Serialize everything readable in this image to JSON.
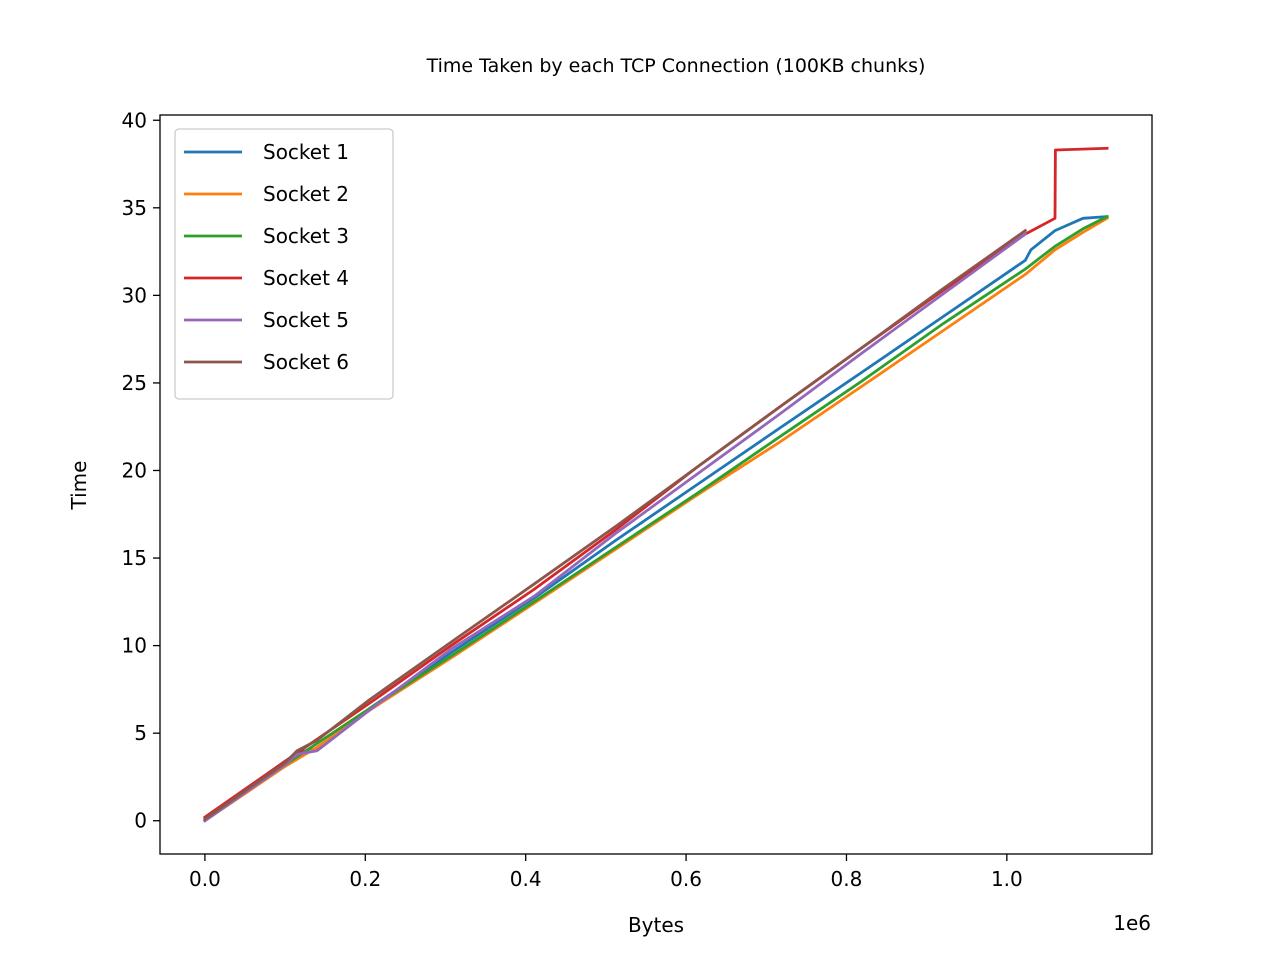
{
  "chart_data": {
    "type": "line",
    "title": "Time Taken by each TCP Connection (100KB chunks)",
    "xlabel": "Bytes",
    "ylabel": "Time",
    "x_offset_label": "1e6",
    "xlim": [
      -56000,
      1181000
    ],
    "ylim": [
      -1.9,
      40.3
    ],
    "x_ticks": [
      0,
      200000,
      400000,
      600000,
      800000,
      1000000
    ],
    "x_tick_labels": [
      "0.0",
      "0.2",
      "0.4",
      "0.6",
      "0.8",
      "1.0"
    ],
    "y_ticks": [
      0,
      5,
      10,
      15,
      20,
      25,
      30,
      35,
      40
    ],
    "y_tick_labels": [
      "0",
      "5",
      "10",
      "15",
      "20",
      "25",
      "30",
      "35",
      "40"
    ],
    "grid": false,
    "legend_position": "upper-left",
    "series": [
      {
        "name": "Socket 1",
        "color": "#1f77b4",
        "x": [
          0,
          100000,
          115000,
          140000,
          205000,
          307000,
          410000,
          512000,
          614000,
          716000,
          819000,
          921000,
          1023000,
          1030000,
          1060000,
          1095000,
          1125000
        ],
        "y": [
          0,
          3.2,
          3.9,
          4.1,
          6.4,
          9.6,
          12.7,
          16.0,
          19.2,
          22.4,
          25.6,
          28.8,
          32.0,
          32.6,
          33.7,
          34.4,
          34.5
        ]
      },
      {
        "name": "Socket 2",
        "color": "#ff7f0e",
        "x": [
          0,
          100000,
          140000,
          205000,
          307000,
          410000,
          512000,
          614000,
          716000,
          819000,
          921000,
          1023000,
          1060000,
          1095000,
          1125000
        ],
        "y": [
          0,
          3.1,
          4.2,
          6.3,
          9.3,
          12.4,
          15.5,
          18.6,
          21.6,
          24.8,
          28.0,
          31.2,
          32.6,
          33.6,
          34.4
        ]
      },
      {
        "name": "Socket 3",
        "color": "#2ca02c",
        "x": [
          0,
          100000,
          205000,
          307000,
          410000,
          512000,
          614000,
          716000,
          819000,
          921000,
          1023000,
          1060000,
          1095000,
          1125000
        ],
        "y": [
          0,
          3.2,
          6.4,
          9.4,
          12.5,
          15.6,
          18.7,
          21.9,
          25.1,
          28.4,
          31.5,
          32.8,
          33.8,
          34.5
        ]
      },
      {
        "name": "Socket 4",
        "color": "#d62728",
        "x": [
          0,
          100000,
          205000,
          307000,
          410000,
          512000,
          614000,
          716000,
          819000,
          921000,
          1023000,
          1060000,
          1060500,
          1125000
        ],
        "y": [
          0.2,
          3.4,
          6.7,
          10.0,
          13.2,
          16.6,
          20.2,
          23.6,
          27.0,
          30.3,
          33.5,
          34.4,
          38.3,
          38.4
        ]
      },
      {
        "name": "Socket 5",
        "color": "#9467bd",
        "x": [
          0,
          100000,
          115000,
          140000,
          205000,
          307000,
          410000,
          512000,
          614000,
          716000,
          819000,
          921000,
          1023000
        ],
        "y": [
          0,
          3.2,
          3.8,
          4.0,
          6.3,
          9.8,
          12.8,
          16.4,
          19.8,
          23.2,
          26.7,
          30.1,
          33.5
        ]
      },
      {
        "name": "Socket 6",
        "color": "#8c564b",
        "x": [
          0,
          100000,
          115000,
          140000,
          205000,
          307000,
          410000,
          512000,
          614000,
          716000,
          819000,
          921000,
          1023000
        ],
        "y": [
          0.1,
          3.3,
          4.0,
          4.6,
          6.9,
          10.2,
          13.5,
          16.8,
          20.2,
          23.6,
          27.0,
          30.4,
          33.7
        ]
      }
    ]
  }
}
